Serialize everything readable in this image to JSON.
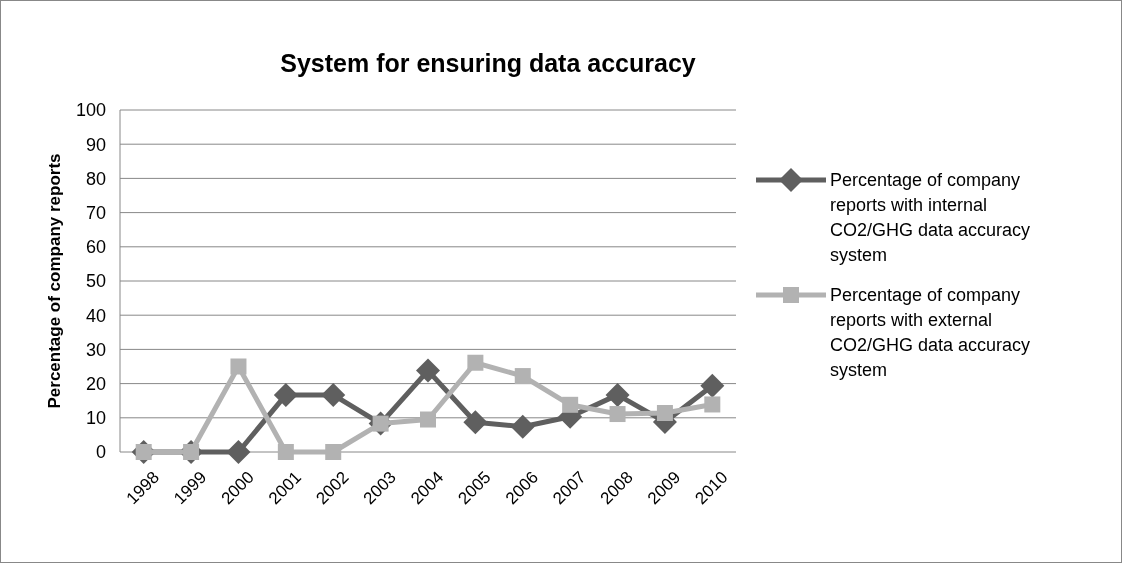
{
  "chart_data": {
    "type": "line",
    "title": "System for ensuring data accuracy",
    "ylabel": "Percentage of company reports",
    "categories": [
      "1998",
      "1999",
      "2000",
      "2001",
      "2002",
      "2003",
      "2004",
      "2005",
      "2006",
      "2007",
      "2008",
      "2009",
      "2010"
    ],
    "series": [
      {
        "name": "Percentage of company reports with internal CO2/GHG data accuracy system",
        "color": "#5f5f5f",
        "marker": "diamond",
        "values": [
          0,
          0,
          0,
          16.7,
          16.7,
          8.3,
          23.8,
          8.7,
          7.4,
          10.3,
          16.7,
          8.8,
          19.4
        ]
      },
      {
        "name": "Percentage of company reports with external CO2/GHG data accuracy system",
        "color": "#b2b2b2",
        "marker": "square",
        "values": [
          0,
          0,
          25,
          0,
          0,
          8.3,
          9.5,
          26.1,
          22.2,
          13.8,
          11.1,
          11.4,
          13.9
        ]
      }
    ],
    "ylim": [
      0,
      100
    ],
    "yticks": [
      0,
      10,
      20,
      30,
      40,
      50,
      60,
      70,
      80,
      90,
      100
    ],
    "grid": "y",
    "legend": "right",
    "line_style": "solid"
  }
}
